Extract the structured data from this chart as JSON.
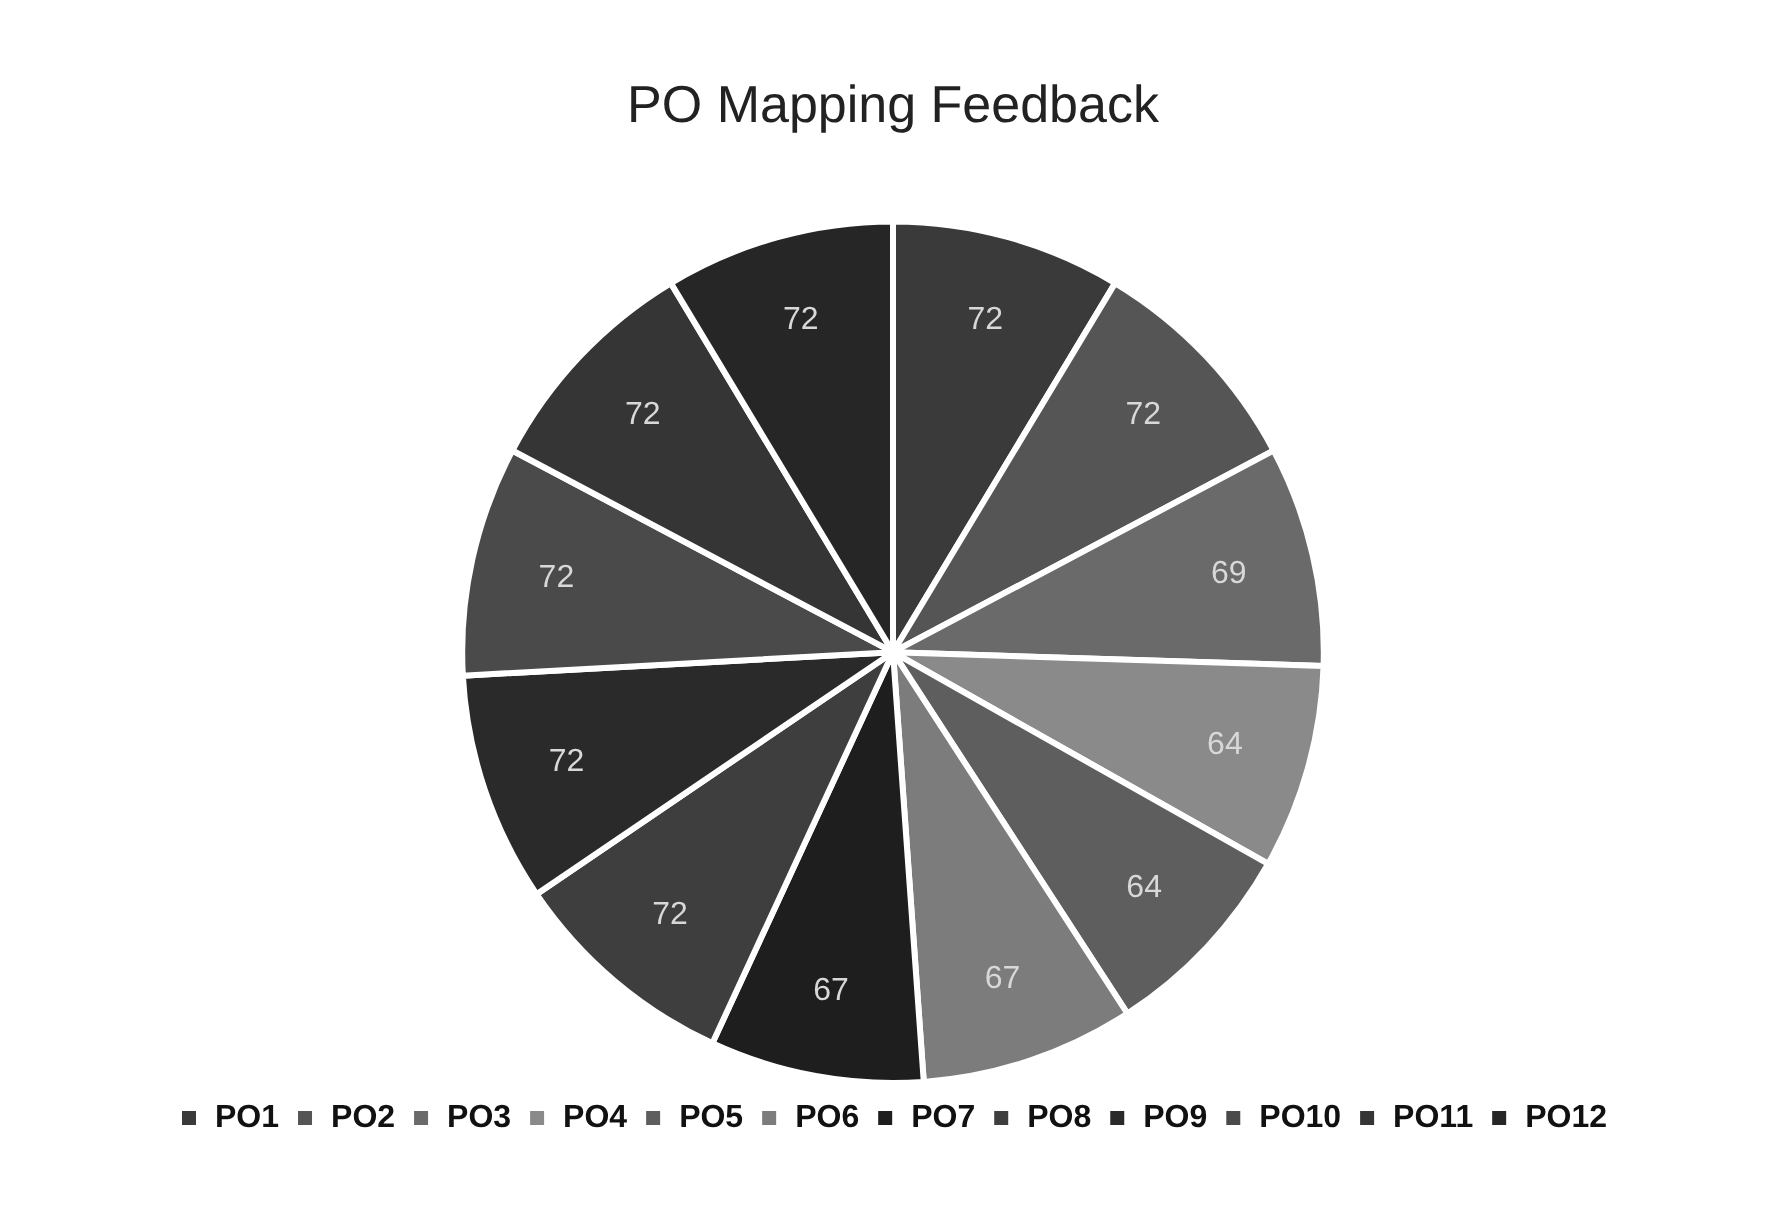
{
  "chart_data": {
    "type": "pie",
    "title": "PO Mapping Feedback",
    "categories": [
      "PO1",
      "PO2",
      "PO3",
      "PO4",
      "PO5",
      "PO6",
      "PO7",
      "PO8",
      "PO9",
      "PO10",
      "PO11",
      "PO12"
    ],
    "values": [
      72,
      72,
      69,
      64,
      64,
      67,
      67,
      72,
      72,
      72,
      72,
      72
    ],
    "colors": [
      "#3a3a3a",
      "#555555",
      "#6a6a6a",
      "#8a8a8a",
      "#5e5e5e",
      "#7c7c7c",
      "#1e1e1e",
      "#3e3e3e",
      "#2a2a2a",
      "#4a4a4a",
      "#353535",
      "#262626"
    ],
    "data_labels": true,
    "legend": "bottom"
  }
}
